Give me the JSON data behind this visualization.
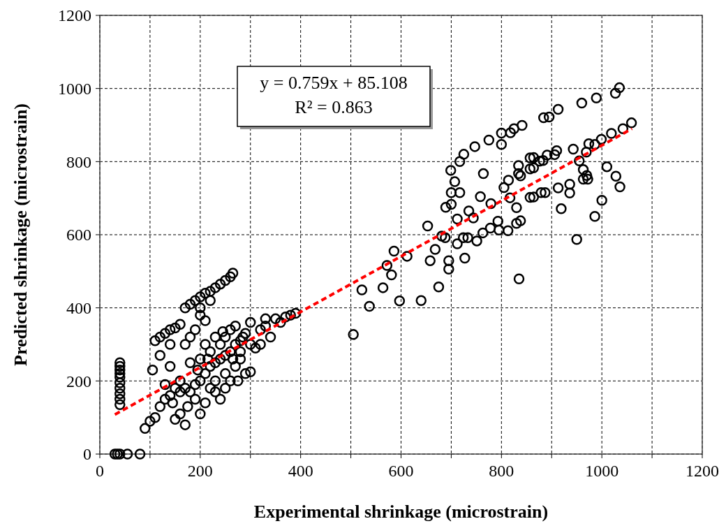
{
  "chart_data": {
    "type": "scatter",
    "xlabel": "Experimental shrinkage (microstrain)",
    "ylabel": "Predicted shrinkage (microstrain)",
    "annotations": [
      "y = 0.759x + 85.108",
      "R² = 0.863"
    ],
    "xlim": [
      0,
      1200
    ],
    "ylim": [
      0,
      1200
    ],
    "xticks": [
      0,
      {
        "value": 100,
        "label": null
      },
      200,
      {
        "value": 300,
        "label": null
      },
      400,
      {
        "value": 500,
        "label": null
      },
      600,
      {
        "value": 700,
        "label": null
      },
      800,
      {
        "value": 900,
        "label": null
      },
      1000,
      {
        "value": 1100,
        "label": null
      },
      1200
    ],
    "yticks": [
      0,
      200,
      400,
      600,
      800,
      1000,
      1200
    ],
    "grid": true,
    "marker": "circle",
    "series": [
      {
        "color": "#000000",
        "x": [
          30,
          35,
          40,
          55,
          80,
          40,
          40,
          40,
          40,
          40,
          40,
          40,
          40,
          40,
          40,
          105,
          110,
          120,
          130,
          140,
          150,
          160,
          120,
          140,
          170,
          180,
          190,
          200,
          210,
          220,
          230,
          240,
          250,
          260,
          265,
          200,
          210,
          190,
          180,
          170,
          220,
          200,
          90,
          100,
          110,
          120,
          130,
          140,
          150,
          160,
          170,
          175,
          180,
          190,
          200,
          200,
          210,
          220,
          220,
          230,
          230,
          240,
          240,
          250,
          250,
          260,
          260,
          270,
          270,
          280,
          280,
          290,
          290,
          300,
          300,
          210,
          230,
          250,
          190,
          170,
          160,
          150,
          130,
          140,
          180,
          200,
          220,
          240,
          250,
          260,
          270,
          280,
          210,
          230,
          245,
          195,
          215,
          265,
          275,
          285,
          160,
          145,
          310,
          320,
          330,
          340,
          350,
          360,
          370,
          380,
          390,
          330,
          320,
          300,
          505,
          522,
          537,
          564,
          572,
          581,
          586,
          597,
          612,
          640,
          653,
          658,
          668,
          675,
          681,
          688,
          695,
          695,
          689,
          700,
          699,
          707,
          700,
          717,
          712,
          712,
          717,
          725,
          724,
          733,
          727,
          735,
          744,
          747,
          751,
          758,
          763,
          764,
          775,
          778,
          779,
          793,
          795,
          800,
          800,
          805,
          813,
          814,
          817,
          818,
          825,
          830,
          830,
          834,
          834,
          835,
          838,
          841,
          857,
          857,
          857,
          876,
          879,
          884,
          838,
          864,
          864,
          864,
          883,
          887,
          891,
          895,
          906,
          910,
          913,
          913,
          919,
          936,
          936,
          943,
          950,
          955,
          960,
          963,
          963,
          969,
          970,
          972,
          974,
          986,
          989,
          986,
          999,
          1000,
          1010,
          1019,
          1027,
          1035,
          1028,
          1036,
          1042,
          1059
        ],
        "values": [
          0,
          0,
          0,
          0,
          0,
          135,
          150,
          165,
          180,
          195,
          210,
          220,
          230,
          240,
          250,
          230,
          310,
          320,
          330,
          340,
          345,
          355,
          270,
          300,
          400,
          410,
          420,
          430,
          440,
          445,
          455,
          465,
          475,
          485,
          495,
          380,
          365,
          340,
          320,
          300,
          420,
          400,
          70,
          90,
          100,
          130,
          150,
          160,
          95,
          110,
          80,
          130,
          170,
          190,
          200,
          110,
          220,
          180,
          240,
          250,
          200,
          260,
          150,
          270,
          220,
          280,
          200,
          300,
          240,
          310,
          260,
          330,
          220,
          360,
          225,
          140,
          170,
          180,
          150,
          180,
          200,
          180,
          190,
          240,
          250,
          260,
          280,
          300,
          320,
          340,
          350,
          280,
          300,
          320,
          335,
          230,
          260,
          260,
          200,
          320,
          170,
          140,
          290,
          300,
          350,
          320,
          370,
          360,
          375,
          380,
          385,
          370,
          340,
          300,
          327,
          449,
          404,
          455,
          516,
          490,
          555,
          419,
          541,
          420,
          624,
          529,
          560,
          457,
          596,
          592,
          529,
          506,
          675,
          683,
          776,
          745,
          715,
          715,
          643,
          575,
          800,
          820,
          592,
          592,
          536,
          665,
          646,
          841,
          583,
          704,
          605,
          767,
          859,
          618,
          685,
          637,
          613,
          878,
          847,
          729,
          611,
          749,
          701,
          879,
          890,
          674,
          631,
          789,
          767,
          479,
          638,
          899,
          810,
          780,
          702,
          801,
          715,
          920,
          761,
          811,
          783,
          703,
          803,
          715,
          818,
          922,
          819,
          830,
          943,
          728,
          671,
          738,
          714,
          834,
          587,
          802,
          960,
          778,
          752,
          826,
          762,
          752,
          849,
          650,
          974,
          847,
          861,
          694,
          786,
          877,
          987,
          1002,
          760,
          731,
          890,
          906
        ]
      },
      {
        "type": "line",
        "color": "#ff0000",
        "line_style": "dashed",
        "marker": "none",
        "x": [
          30,
          1060
        ],
        "values": [
          108,
          890
        ]
      }
    ]
  }
}
